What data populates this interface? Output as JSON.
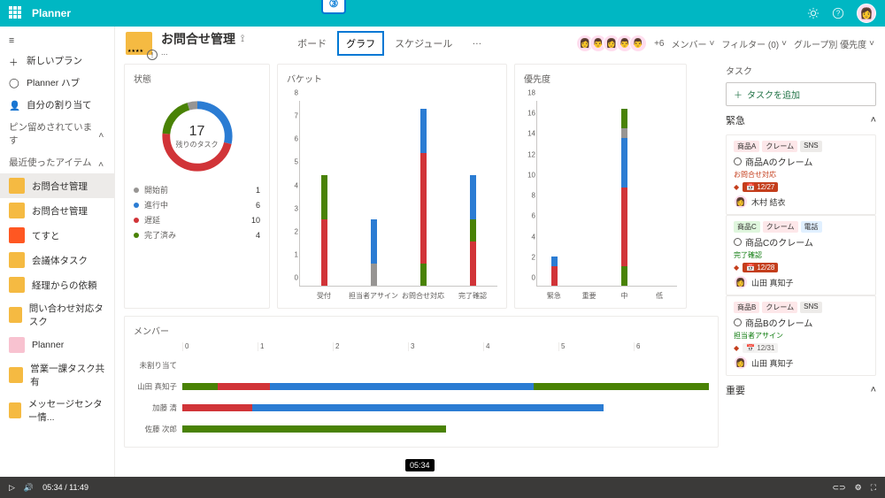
{
  "colors": {
    "brand": "#00b7c3",
    "gray": "#605e5c",
    "red": "#c43e1c",
    "blue": "#2b7cd3",
    "green": "#217346",
    "green2": "#107c10",
    "fill_red": "#d13438",
    "fill_blue": "#2b7cd3",
    "fill_green": "#498205",
    "fill_gray": "#979593"
  },
  "app": {
    "name": "Planner"
  },
  "callout": "③",
  "nav": {
    "newPlan": "新しいプラン",
    "hub": "Planner ハブ",
    "myTasks": "自分の割り当て",
    "pinned": "ピン留めされています",
    "recent": "最近使ったアイテム",
    "items": [
      {
        "label": "お問合せ管理",
        "sel": true,
        "icon": "yl"
      },
      {
        "label": "お問合せ管理",
        "icon": "yl"
      },
      {
        "label": "てすと",
        "icon": "org"
      },
      {
        "label": "会議体タスク",
        "icon": "yl"
      },
      {
        "label": "経理からの依頼",
        "icon": "yl"
      },
      {
        "label": "問い合わせ対応タスク",
        "icon": "yl"
      },
      {
        "label": "Planner",
        "icon": "pk"
      },
      {
        "label": "営業一課タスク共有",
        "icon": "yl"
      },
      {
        "label": "メッセージセンター情...",
        "icon": "yl"
      }
    ]
  },
  "header": {
    "title": "お問合せ管理",
    "dots": "...",
    "tabs": [
      {
        "label": "ボード",
        "active": false
      },
      {
        "label": "グラフ",
        "active": true
      },
      {
        "label": "スケジュール",
        "active": false
      },
      {
        "label": "…",
        "active": false
      }
    ],
    "extra": "+6",
    "menus": {
      "members": "メンバー",
      "filter": "フィルター (0)",
      "group": "グループ別 優先度"
    },
    "avatars": [
      "👩",
      "👨",
      "👩",
      "👨",
      "👨"
    ]
  },
  "status": {
    "title": "状態",
    "total": 17,
    "totalLabel": "残りのタスク",
    "donut": [
      {
        "color": "#2b7cd3",
        "value": 6
      },
      {
        "color": "#d13438",
        "value": 10
      },
      {
        "color": "#498205",
        "value": 4
      },
      {
        "color": "#979593",
        "value": 1
      }
    ],
    "circumference": 251.2,
    "legend": [
      {
        "color": "#979593",
        "label": "開始前",
        "value": 1
      },
      {
        "color": "#2b7cd3",
        "label": "進行中",
        "value": 6
      },
      {
        "color": "#d13438",
        "label": "遅延",
        "value": 10
      },
      {
        "color": "#498205",
        "label": "完了済み",
        "value": 4
      }
    ]
  },
  "bucket": {
    "title": "バケット",
    "ymax": 8,
    "yticks": [
      0,
      1,
      2,
      3,
      4,
      5,
      6,
      7,
      8
    ],
    "categories": [
      "受付",
      "担当者アサイン",
      "お問合せ対応",
      "完了確認"
    ],
    "bars": [
      [
        {
          "h": 3,
          "c": "#d13438"
        },
        {
          "h": 2,
          "c": "#498205"
        }
      ],
      [
        {
          "h": 1,
          "c": "#979593"
        },
        {
          "h": 2,
          "c": "#2b7cd3"
        }
      ],
      [
        {
          "h": 1,
          "c": "#498205"
        },
        {
          "h": 5,
          "c": "#d13438"
        },
        {
          "h": 2,
          "c": "#2b7cd3"
        }
      ],
      [
        {
          "h": 2,
          "c": "#d13438"
        },
        {
          "h": 1,
          "c": "#498205"
        },
        {
          "h": 2,
          "c": "#2b7cd3"
        }
      ]
    ]
  },
  "priority": {
    "title": "優先度",
    "ymax": 18,
    "yticks": [
      0,
      2,
      4,
      6,
      8,
      10,
      12,
      14,
      16,
      18
    ],
    "categories": [
      "緊急",
      "重要",
      "中",
      "低"
    ],
    "bars": [
      [
        {
          "h": 2,
          "c": "#d13438"
        },
        {
          "h": 1,
          "c": "#2b7cd3"
        }
      ],
      [],
      [
        {
          "h": 2,
          "c": "#498205"
        },
        {
          "h": 8,
          "c": "#d13438"
        },
        {
          "h": 5,
          "c": "#2b7cd3"
        },
        {
          "h": 1,
          "c": "#979593"
        },
        {
          "h": 2,
          "c": "#498205"
        }
      ],
      []
    ]
  },
  "members": {
    "title": "メンバー",
    "xticks": [
      0,
      1,
      2,
      3,
      4,
      5,
      6
    ],
    "max": 6,
    "rows": [
      {
        "name": "未割り当て",
        "segs": []
      },
      {
        "name": "山田 真知子",
        "segs": [
          {
            "w": 0.4,
            "c": "#498205"
          },
          {
            "w": 0.6,
            "c": "#d13438"
          },
          {
            "w": 3.0,
            "c": "#2b7cd3"
          },
          {
            "w": 2.0,
            "c": "#498205"
          }
        ]
      },
      {
        "name": "加藤 清",
        "segs": [
          {
            "w": 0.8,
            "c": "#d13438"
          },
          {
            "w": 4.0,
            "c": "#2b7cd3"
          }
        ]
      },
      {
        "name": "佐藤 次郎",
        "segs": [
          {
            "w": 3.0,
            "c": "#498205"
          }
        ]
      }
    ]
  },
  "side": {
    "taskHeader": "タスク",
    "addTask": "タスクを追加",
    "urgent": "緊急",
    "important": "重要",
    "tasks": [
      {
        "tags": [
          {
            "t": "商品A",
            "c": "#fde7e9"
          },
          {
            "t": "クレーム",
            "c": "#fde7e9"
          },
          {
            "t": "SNS",
            "c": "#edebe9"
          }
        ],
        "title": "商品Aのクレーム",
        "sub": "お問合せ対応",
        "subClass": "",
        "date": "12/27",
        "dateClass": "",
        "assignee": "木村 結衣",
        "asgFace": "👩"
      },
      {
        "tags": [
          {
            "t": "商品C",
            "c": "#dff6dd"
          },
          {
            "t": "クレーム",
            "c": "#fde7e9"
          },
          {
            "t": "電話",
            "c": "#e1f0ff"
          }
        ],
        "title": "商品Cのクレーム",
        "sub": "完了確認",
        "subClass": "g",
        "date": "12/28",
        "dateClass": "",
        "assignee": "山田 真知子",
        "asgFace": "👩"
      },
      {
        "tags": [
          {
            "t": "商品B",
            "c": "#fde7e9"
          },
          {
            "t": "クレーム",
            "c": "#fde7e9"
          },
          {
            "t": "SNS",
            "c": "#edebe9"
          }
        ],
        "title": "商品Bのクレーム",
        "sub": "担当者アサイン",
        "subClass": "g",
        "date": "12/31",
        "dateClass": "g",
        "assignee": "山田 真知子",
        "asgFace": "👩"
      }
    ]
  },
  "player": {
    "time": "05:34 / 11:49",
    "tip": "05:34",
    "progress": 0.465
  }
}
